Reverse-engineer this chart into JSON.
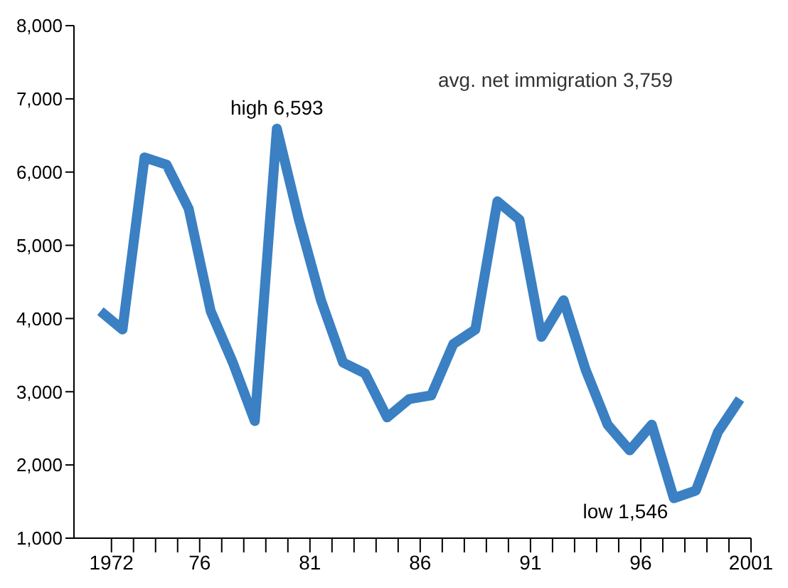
{
  "chart_data": {
    "type": "line",
    "x": [
      1971.5,
      1972.5,
      1973.5,
      1974.5,
      1975.5,
      1976.5,
      1977.5,
      1978.5,
      1979.5,
      1980.5,
      1981.5,
      1982.5,
      1983.5,
      1984.5,
      1985.5,
      1986.5,
      1987.5,
      1988.5,
      1989.5,
      1990.5,
      1991.5,
      1992.5,
      1993.5,
      1994.5,
      1995.5,
      1996.5,
      1997.5,
      1998.5,
      1999.5,
      2000.5
    ],
    "series": [
      {
        "color": "#3a80c3",
        "values": [
          4100,
          3850,
          6200,
          6100,
          5500,
          4100,
          3400,
          2600,
          6593,
          5350,
          4250,
          3400,
          3250,
          2650,
          2900,
          2950,
          3650,
          3850,
          5600,
          5350,
          3750,
          4250,
          3300,
          2550,
          2200,
          2550,
          1546,
          1650,
          2450,
          2900
        ]
      }
    ],
    "xlim": [
      1970.3,
      2001
    ],
    "xticks": [
      {
        "value": 1972,
        "label": "1972"
      },
      {
        "value": 1973,
        "label": null
      },
      {
        "value": 1974,
        "label": null
      },
      {
        "value": 1975,
        "label": null
      },
      {
        "value": 1976,
        "label": "76"
      },
      {
        "value": 1977,
        "label": null
      },
      {
        "value": 1978,
        "label": null
      },
      {
        "value": 1979,
        "label": null
      },
      {
        "value": 1980,
        "label": null
      },
      {
        "value": 1981,
        "label": "81"
      },
      {
        "value": 1982,
        "label": null
      },
      {
        "value": 1983,
        "label": null
      },
      {
        "value": 1984,
        "label": null
      },
      {
        "value": 1985,
        "label": null
      },
      {
        "value": 1986,
        "label": "86"
      },
      {
        "value": 1987,
        "label": null
      },
      {
        "value": 1988,
        "label": null
      },
      {
        "value": 1989,
        "label": null
      },
      {
        "value": 1990,
        "label": null
      },
      {
        "value": 1991,
        "label": "91"
      },
      {
        "value": 1992,
        "label": null
      },
      {
        "value": 1993,
        "label": null
      },
      {
        "value": 1994,
        "label": null
      },
      {
        "value": 1995,
        "label": null
      },
      {
        "value": 1996,
        "label": "96"
      },
      {
        "value": 1997,
        "label": null
      },
      {
        "value": 1998,
        "label": null
      },
      {
        "value": 1999,
        "label": null
      },
      {
        "value": 2000,
        "label": null
      },
      {
        "value": 2001,
        "label": "2001"
      }
    ],
    "ylim": [
      1000,
      8000
    ],
    "yticks": [
      {
        "value": 1000,
        "label": "1,000"
      },
      {
        "value": 2000,
        "label": "2,000"
      },
      {
        "value": 3000,
        "label": "3,000"
      },
      {
        "value": 4000,
        "label": "4,000"
      },
      {
        "value": 5000,
        "label": "5,000"
      },
      {
        "value": 6000,
        "label": "6,000"
      },
      {
        "value": 7000,
        "label": "7,000"
      },
      {
        "value": 8000,
        "label": "8,000"
      }
    ],
    "grid": false,
    "legend": false,
    "marker": "none",
    "line_style": "solid",
    "annotations": [
      {
        "text": "high 6,593",
        "x": 1979.5,
        "y": 6593
      },
      {
        "text": "low 1,546",
        "x": 1997.5,
        "y": 1546
      },
      "avg. net immigration 3,759"
    ]
  }
}
